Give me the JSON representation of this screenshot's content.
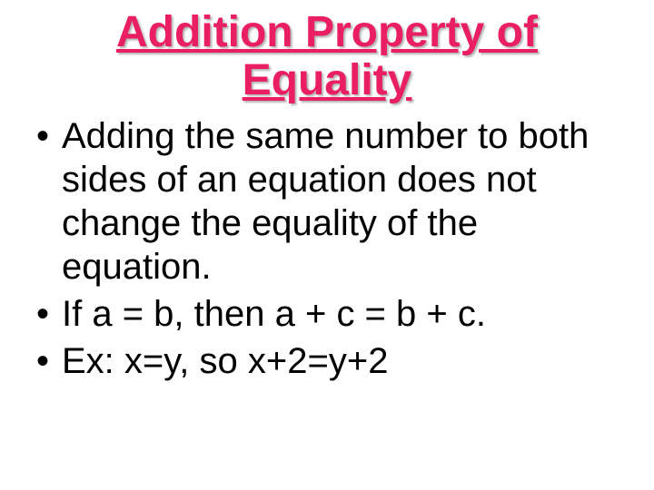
{
  "slide": {
    "title": "Addition Property of Equality",
    "title_color": "#e91e63",
    "title_fontsize": 48,
    "title_underline": true,
    "title_shadow": "2px 2px 2px rgba(0,0,0,0.3)",
    "body_fontsize": 40,
    "body_color": "#000000",
    "background_color": "#ffffff",
    "bullets": [
      "Adding the same number to both sides of an equation does not change the equality of the equation.",
      "If a = b, then a + c = b + c.",
      "Ex: x=y, so x+2=y+2"
    ]
  }
}
